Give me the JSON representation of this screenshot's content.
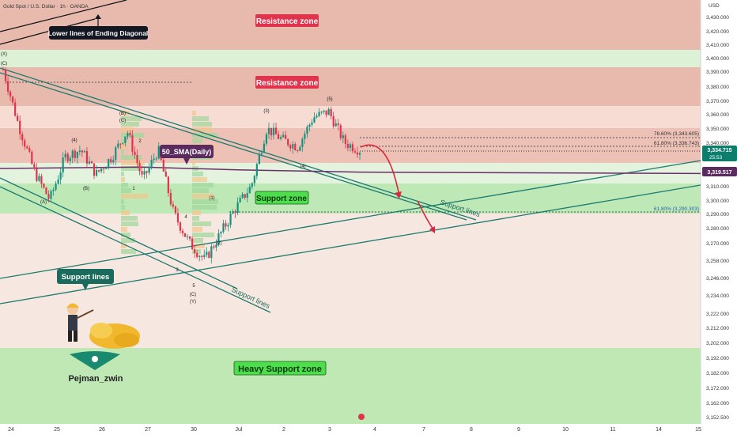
{
  "header": {
    "symbol_title": "Gold Spot / U.S. Dollar · 1h · OANDA",
    "currency": "USD"
  },
  "colors": {
    "resistance_zone": "#e8b9ad",
    "light_red_zone": "#f4d9d2",
    "support_zone": "#b9e6b2",
    "light_green": "#d6f0d0",
    "heavy_support_zone": "#bfe8b5",
    "candle_up": "#17917f",
    "candle_down": "#e0344d",
    "trend_line": "#1a7a6e",
    "sma_line": "#6b2e6b",
    "arrow_red": "#d8283c",
    "volume_profile_green": "#9ed79a",
    "volume_profile_orange": "#f2c48a",
    "price_tag_dark": "#131722",
    "price_tag_purple": "#5b2a5e"
  },
  "annotations": {
    "resistance_zone_top": "Resistance zone",
    "resistance_zone_mid": "Resistance zone",
    "support_zone": "Support zone",
    "heavy_support_zone": "Heavy Support zone",
    "lower_lines_diag": "Lower lines of Ending Diagonal",
    "sma_label": "50_SMA(Daily)",
    "support_lines_box": "Support lines",
    "support_lines_text_1": "Support lines",
    "support_lines_text_2": "Support lines",
    "fib_786": "78.60% (3,343.605)",
    "fib_618_top": "61.80% (3,336.743)",
    "fib_618_bottom": "61.80% (3,290.303)",
    "author": "Pejman_zwin",
    "wave_labels": [
      "(C)",
      "(X)",
      "(B)",
      "(C)",
      "(4)",
      "2",
      "1",
      "(B)",
      "(A)",
      "4",
      "3",
      "5",
      "(C)",
      "(Y)",
      "(1)",
      "(2)",
      "(3)",
      "(4)",
      "(5)"
    ]
  },
  "price_axis": {
    "ticks": [
      "3,430.000",
      "3,420.000",
      "3,410.000",
      "3,400.000",
      "3,390.000",
      "3,380.000",
      "3,370.000",
      "3,360.000",
      "3,350.000",
      "3,340.000",
      "3,310.000",
      "3,300.000",
      "3,290.000",
      "3,280.000",
      "3,270.000",
      "3,258.000",
      "3,246.000",
      "3,234.000",
      "3,222.000",
      "3,212.000",
      "3,202.000",
      "3,192.000",
      "3,182.000",
      "3,172.000",
      "3,162.000",
      "3,152.500"
    ],
    "current_price": "3,334.715",
    "countdown": "25:53",
    "sma_price": "3,319.517"
  },
  "time_axis": {
    "ticks": [
      "24",
      "25",
      "26",
      "27",
      "30",
      "Jul",
      "2",
      "3",
      "4",
      "7",
      "8",
      "9",
      "10",
      "11",
      "14",
      "15"
    ]
  },
  "chart_data": {
    "type": "candlestick",
    "title": "Gold Spot / U.S. Dollar · 1h · OANDA",
    "xlabel": "",
    "ylabel": "USD",
    "ylim": [
      3150,
      3438
    ],
    "zones": [
      {
        "name": "Resistance zone",
        "from": 3405,
        "to": 3438
      },
      {
        "name": "Resistance zone",
        "from": 3368,
        "to": 3392
      },
      {
        "name": "",
        "from": 3330,
        "to": 3352
      },
      {
        "name": "Support zone",
        "from": 3290,
        "to": 3311
      },
      {
        "name": "Heavy Support zone",
        "from": 3150,
        "to": 3198
      }
    ],
    "close_path": [
      {
        "date": "Jun 24",
        "close": 3392
      },
      {
        "date": "Jun 24",
        "close": 3352
      },
      {
        "date": "Jun 24",
        "close": 3320
      },
      {
        "date": "Jun 25",
        "close": 3300
      },
      {
        "date": "Jun 25",
        "close": 3330
      },
      {
        "date": "Jun 25",
        "close": 3335
      },
      {
        "date": "Jun 26",
        "close": 3318
      },
      {
        "date": "Jun 26",
        "close": 3330
      },
      {
        "date": "Jun 26",
        "close": 3348
      },
      {
        "date": "Jun 27",
        "close": 3314
      },
      {
        "date": "Jun 27",
        "close": 3335
      },
      {
        "date": "Jun 27",
        "close": 3290
      },
      {
        "date": "Jun 27",
        "close": 3270
      },
      {
        "date": "Jun 30",
        "close": 3258
      },
      {
        "date": "Jun 30",
        "close": 3276
      },
      {
        "date": "Jun 30",
        "close": 3294
      },
      {
        "date": "Jul 1",
        "close": 3310
      },
      {
        "date": "Jul 1",
        "close": 3350
      },
      {
        "date": "Jul 2",
        "close": 3342
      },
      {
        "date": "Jul 2",
        "close": 3337
      },
      {
        "date": "Jul 3",
        "close": 3358
      },
      {
        "date": "Jul 3",
        "close": 3362
      },
      {
        "date": "Jul 3",
        "close": 3340
      },
      {
        "date": "Jul 3",
        "close": 3334.715
      }
    ],
    "sma_50_daily": [
      {
        "date": "Jun 24",
        "value": 3322
      },
      {
        "date": "Jun 27",
        "value": 3323
      },
      {
        "date": "Jul 1",
        "value": 3321
      },
      {
        "date": "Jul 3",
        "value": 3319.517
      }
    ],
    "fib_levels": [
      {
        "label": "78.60%",
        "value": 3343.605
      },
      {
        "label": "61.80%",
        "value": 3336.743
      },
      {
        "label": "61.80%",
        "value": 3290.303
      }
    ],
    "current_price": 3334.715,
    "sma_current": 3319.517,
    "projected_path": [
      {
        "date": "Jul 3",
        "value": 3338
      },
      {
        "date": "Jul 7",
        "value": 3303
      },
      {
        "date": "Jul 8",
        "value": 3281
      }
    ],
    "grid": false,
    "legend": "none"
  }
}
